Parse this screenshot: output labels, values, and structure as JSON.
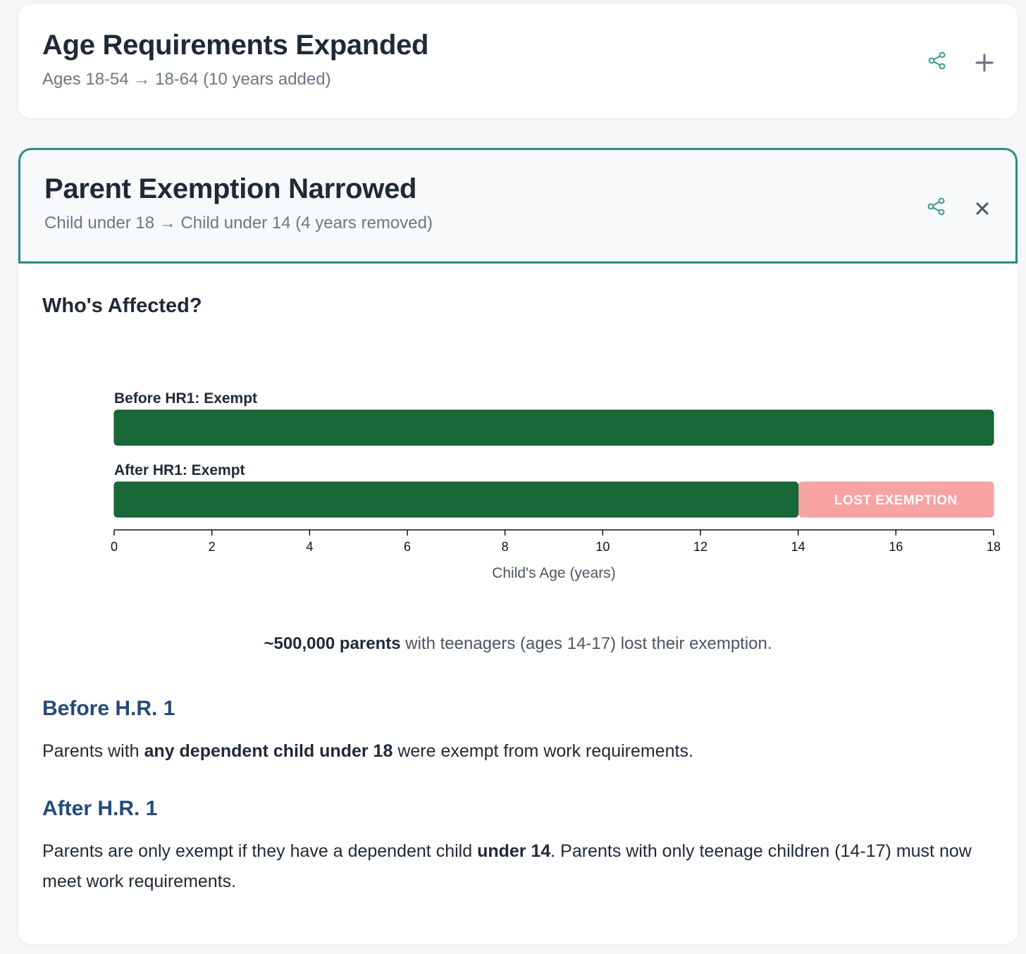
{
  "cards": {
    "age": {
      "title": "Age Requirements Expanded",
      "subtitle": "Ages 18-54 → 18-64 (10 years added)"
    },
    "parent": {
      "title": "Parent Exemption Narrowed",
      "subtitle": "Child under 18 → Child under 14 (4 years removed)",
      "section_title": "Who's Affected?",
      "summary_bold": "~500,000 parents",
      "summary_rest": " with teenagers (ages 14-17) lost their exemption.",
      "before_head": "Before H.R. 1",
      "before_pre": "Parents with ",
      "before_bold": "any dependent child under 18",
      "before_post": " were exempt from work requirements.",
      "after_head": "After H.R. 1",
      "after_pre": "Parents are only exempt if they have a dependent child ",
      "after_bold": "under 14",
      "after_post": ". Parents with only teenage children (14-17) must now meet work requirements."
    }
  },
  "icons": [
    "share-icon",
    "plus-icon",
    "close-icon"
  ],
  "colors": {
    "accent": "#2b8a81",
    "exempt": "#186838",
    "lost": "#f8a3a3",
    "heading_blue": "#26497a"
  },
  "chart_data": {
    "type": "bar",
    "orientation": "horizontal",
    "xlabel": "Child's Age (years)",
    "xlim": [
      0,
      18
    ],
    "xticks": [
      0,
      2,
      4,
      6,
      8,
      10,
      12,
      14,
      16,
      18
    ],
    "rows": [
      {
        "label": "Before HR1: Exempt",
        "segments": [
          {
            "start": 0,
            "end": 18,
            "kind": "exempt",
            "text": ""
          }
        ]
      },
      {
        "label": "After HR1: Exempt",
        "segments": [
          {
            "start": 0,
            "end": 14,
            "kind": "exempt",
            "text": ""
          },
          {
            "start": 14,
            "end": 18,
            "kind": "lost",
            "text": "LOST EXEMPTION"
          }
        ]
      }
    ]
  }
}
